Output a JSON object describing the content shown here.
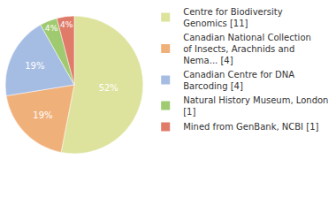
{
  "chart_data": {
    "type": "pie",
    "categories": [
      "Centre for Biodiversity Genomics [11]",
      "Canadian National Collection of Insects, Arachnids and Nema... [4]",
      "Canadian Centre for DNA Barcoding [4]",
      "Natural History Museum, London [1]",
      "Mined from GenBank, NCBI [1]"
    ],
    "values": [
      52,
      19,
      19,
      4,
      4
    ],
    "value_labels": [
      "52%",
      "19%",
      "19%",
      "4%",
      "4%"
    ],
    "colors": [
      "#dde39c",
      "#f0b07a",
      "#a6bde3",
      "#9fca70",
      "#e07b69"
    ],
    "data_labels": true,
    "legend": "right"
  }
}
